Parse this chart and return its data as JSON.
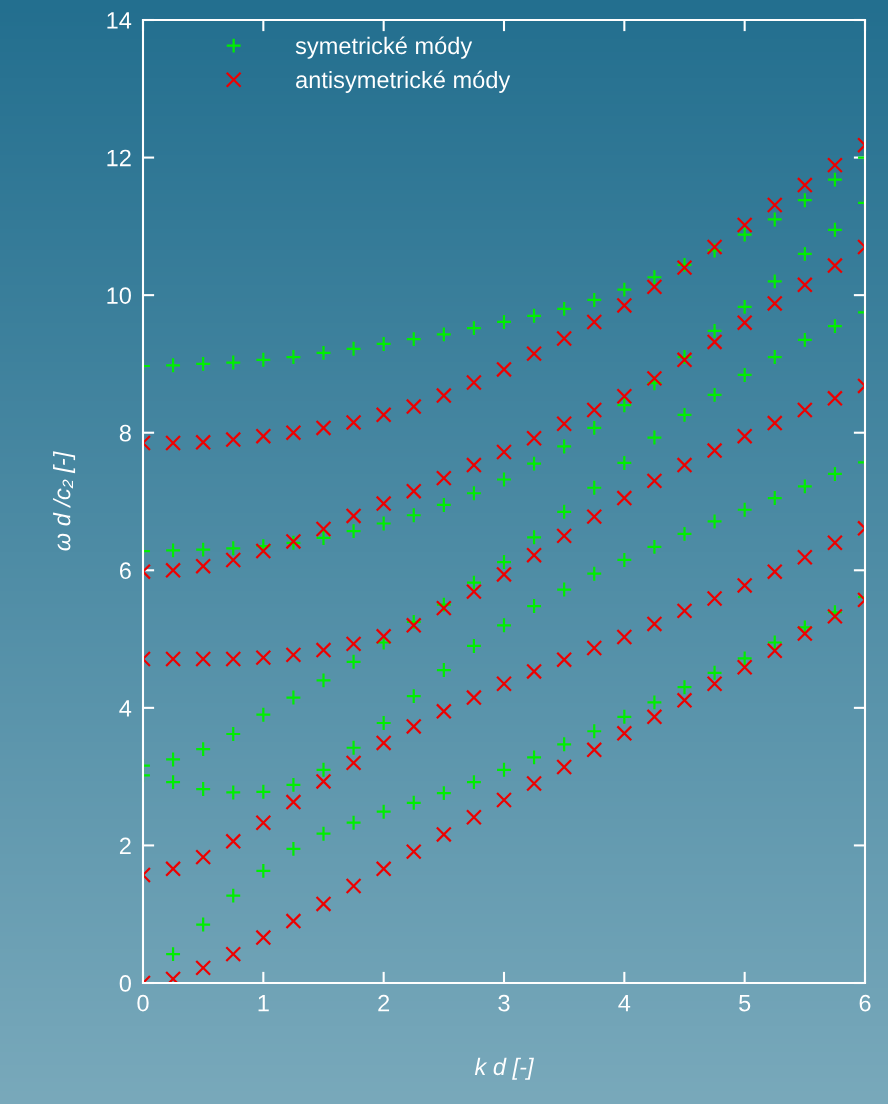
{
  "chart_data": {
    "type": "scatter",
    "xlabel": "k d [-]",
    "ylabel": "ω d /c₂ [-]",
    "xlim": [
      0,
      6
    ],
    "xticks": [
      0,
      1,
      2,
      3,
      4,
      5,
      6
    ],
    "ylim": [
      0,
      14
    ],
    "yticks": [
      0,
      2,
      4,
      6,
      8,
      10,
      12,
      14
    ],
    "grid": false,
    "legend": "top left",
    "series": [
      {
        "name": "symetrické módy",
        "color": "#00ee00",
        "marker": "plus",
        "x": [
          0,
          0.25,
          0.5,
          0.75,
          1,
          1.25,
          1.5,
          1.75,
          2,
          2.25,
          2.5,
          2.75,
          3,
          3.25,
          3.5,
          3.75,
          4,
          4.25,
          4.5,
          4.75,
          5,
          5.25,
          5.5,
          5.75,
          6,
          0,
          0.25,
          0.5,
          0.75,
          1,
          1.25,
          1.5,
          1.75,
          2,
          2.25,
          2.5,
          2.75,
          3,
          3.25,
          3.5,
          3.75,
          4,
          4.25,
          4.5,
          4.75,
          5,
          5.25,
          5.5,
          5.75,
          6,
          0,
          0.25,
          0.5,
          0.75,
          1,
          1.25,
          1.5,
          1.75,
          2,
          2.25,
          2.5,
          2.75,
          3,
          3.25,
          3.5,
          3.75,
          4,
          4.25,
          4.5,
          4.75,
          5,
          5.25,
          5.5,
          5.75,
          6,
          0,
          0.25,
          0.5,
          0.75,
          1,
          1.25,
          1.5,
          1.75,
          2,
          2.25,
          2.5,
          2.75,
          3,
          3.25,
          3.5,
          3.75,
          4,
          4.25,
          4.5,
          4.75,
          5,
          5.25,
          5.5,
          5.75,
          6,
          0,
          0.25,
          0.5,
          0.75,
          1,
          1.25,
          1.5,
          1.75,
          2,
          2.25,
          2.5,
          2.75,
          3,
          3.25,
          3.5,
          3.75,
          4,
          4.25,
          4.5,
          4.75,
          5,
          5.25,
          5.5,
          5.75,
          6
        ],
        "values": [
          0,
          0.42,
          0.85,
          1.27,
          1.63,
          1.95,
          2.17,
          2.33,
          2.49,
          2.62,
          2.76,
          2.92,
          3.1,
          3.28,
          3.47,
          3.66,
          3.87,
          4.08,
          4.3,
          4.51,
          4.72,
          4.95,
          5.17,
          5.39,
          5.61,
          3.02,
          2.92,
          2.82,
          2.77,
          2.78,
          2.88,
          3.1,
          3.42,
          3.78,
          4.17,
          4.55,
          4.9,
          5.2,
          5.48,
          5.72,
          5.95,
          6.15,
          6.34,
          6.53,
          6.71,
          6.88,
          7.05,
          7.22,
          7.4,
          7.57,
          3.16,
          3.25,
          3.4,
          3.62,
          3.9,
          4.15,
          4.4,
          4.67,
          4.95,
          5.25,
          5.5,
          5.82,
          6.12,
          6.48,
          6.85,
          7.2,
          7.56,
          7.93,
          8.26,
          8.55,
          8.84,
          9.1,
          9.35,
          9.55,
          9.75,
          6.28,
          6.29,
          6.3,
          6.32,
          6.35,
          6.4,
          6.47,
          6.57,
          6.68,
          6.8,
          6.95,
          7.12,
          7.32,
          7.55,
          7.8,
          8.07,
          8.4,
          8.72,
          9.1,
          9.48,
          9.83,
          10.2,
          10.6,
          10.95,
          11.34,
          8.97,
          8.98,
          9.0,
          9.02,
          9.06,
          9.1,
          9.16,
          9.22,
          9.29,
          9.36,
          9.43,
          9.52,
          9.61,
          9.7,
          9.8,
          9.93,
          10.08,
          10.26,
          10.44,
          10.65,
          10.88,
          11.1,
          11.38,
          11.68,
          12.0
        ]
      },
      {
        "name": "antisymetrické módy",
        "color": "#ee0000",
        "marker": "cross",
        "x": [
          0,
          0.25,
          0.5,
          0.75,
          1,
          1.25,
          1.5,
          1.75,
          2,
          2.25,
          2.5,
          2.75,
          3,
          3.25,
          3.5,
          3.75,
          4,
          4.25,
          4.5,
          4.75,
          5,
          5.25,
          5.5,
          5.75,
          6,
          0,
          0.25,
          0.5,
          0.75,
          1,
          1.25,
          1.5,
          1.75,
          2,
          2.25,
          2.5,
          2.75,
          3,
          3.25,
          3.5,
          3.75,
          4,
          4.25,
          4.5,
          4.75,
          5,
          5.25,
          5.5,
          5.75,
          6,
          0,
          0.25,
          0.5,
          0.75,
          1,
          1.25,
          1.5,
          1.75,
          2,
          2.25,
          2.5,
          2.75,
          3,
          3.25,
          3.5,
          3.75,
          4,
          4.25,
          4.5,
          4.75,
          5,
          5.25,
          5.5,
          5.75,
          6,
          0,
          0.25,
          0.5,
          0.75,
          1,
          1.25,
          1.5,
          1.75,
          2,
          2.25,
          2.5,
          2.75,
          3,
          3.25,
          3.5,
          3.75,
          4,
          4.25,
          4.5,
          4.75,
          5,
          5.25,
          5.5,
          5.75,
          6,
          0,
          0.25,
          0.5,
          0.75,
          1,
          1.25,
          1.5,
          1.75,
          2,
          2.25,
          2.5,
          2.75,
          3,
          3.25,
          3.5,
          3.75,
          4,
          4.25,
          4.5,
          4.75,
          5,
          5.25,
          5.5,
          5.75,
          6
        ],
        "values": [
          0,
          0.06,
          0.22,
          0.42,
          0.66,
          0.9,
          1.15,
          1.41,
          1.66,
          1.91,
          2.16,
          2.41,
          2.66,
          2.9,
          3.14,
          3.39,
          3.63,
          3.87,
          4.11,
          4.35,
          4.59,
          4.83,
          5.08,
          5.33,
          5.57,
          1.57,
          1.66,
          1.83,
          2.06,
          2.33,
          2.63,
          2.93,
          3.2,
          3.49,
          3.73,
          3.95,
          4.15,
          4.35,
          4.53,
          4.7,
          4.87,
          5.03,
          5.22,
          5.41,
          5.59,
          5.78,
          5.98,
          6.19,
          6.4,
          6.61,
          4.71,
          4.71,
          4.71,
          4.71,
          4.73,
          4.77,
          4.84,
          4.93,
          5.04,
          5.2,
          5.45,
          5.69,
          5.94,
          6.22,
          6.5,
          6.78,
          7.05,
          7.3,
          7.53,
          7.74,
          7.95,
          8.14,
          8.33,
          8.5,
          8.68,
          5.98,
          6.0,
          6.06,
          6.15,
          6.28,
          6.42,
          6.6,
          6.79,
          6.97,
          7.15,
          7.34,
          7.53,
          7.72,
          7.92,
          8.13,
          8.33,
          8.53,
          8.79,
          9.06,
          9.32,
          9.6,
          9.88,
          10.15,
          10.43,
          10.7,
          7.85,
          7.85,
          7.86,
          7.9,
          7.95,
          8.0,
          8.07,
          8.15,
          8.26,
          8.38,
          8.54,
          8.73,
          8.92,
          9.15,
          9.37,
          9.61,
          9.85,
          10.12,
          10.4,
          10.7,
          11.02,
          11.31,
          11.6,
          11.89,
          12.18
        ]
      }
    ]
  }
}
